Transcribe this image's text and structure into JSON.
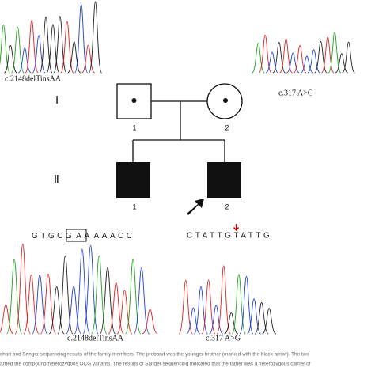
{
  "figure": {
    "top_left_label": "c.2148delTinsAA",
    "top_right_label": "c.317 A>G",
    "generations": [
      "Ⅰ",
      "Ⅱ"
    ],
    "individuals": {
      "gen1": [
        "1",
        "2"
      ],
      "gen2": [
        "1",
        "2"
      ]
    },
    "sequence_left": {
      "before": "GTGCG",
      "boxed": "AA",
      "after": "AAACC"
    },
    "sequence_right": "CTATTGTATTG",
    "bottom_left_label": "c.2148delTinsAA",
    "bottom_right_label": "c.317 A>G",
    "caption": [
      "chart and Sanger sequencing results of the family members. The proband was the younger brother (marked with the black arrow). The two",
      "arried the compound heterozygous OCG variants. The results of Sanger sequencing indicated that the father was a heterozygous carrier of"
    ]
  }
}
